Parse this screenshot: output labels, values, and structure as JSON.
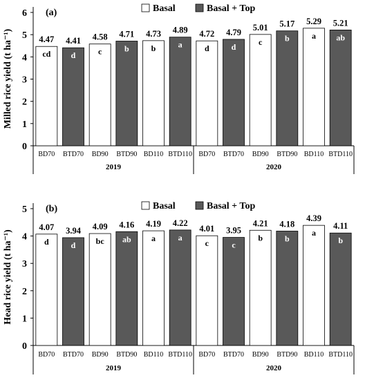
{
  "chart_data": [
    {
      "type": "bar",
      "panel_label": "(a)",
      "ylabel": "Milled rice yield (t ha⁻¹)",
      "ylim": [
        0,
        6
      ],
      "yticks": [
        "0",
        "1",
        "2",
        "3",
        "4",
        "5",
        "6"
      ],
      "categories": [
        "BD70",
        "BTD70",
        "BD90",
        "BTD90",
        "BD110",
        "BTD110",
        "BD70",
        "BTD70",
        "BD90",
        "BTD90",
        "BD110",
        "BTD110"
      ],
      "groups": [
        "2019",
        "2020"
      ],
      "legend": [
        "Basal",
        "Basal + Top"
      ],
      "legend_position": "top",
      "grid": false,
      "bar_colors": [
        "#ffffff",
        "#595959",
        "#ffffff",
        "#595959",
        "#ffffff",
        "#595959",
        "#ffffff",
        "#595959",
        "#ffffff",
        "#595959",
        "#ffffff",
        "#595959"
      ],
      "values": [
        4.47,
        4.41,
        4.58,
        4.71,
        4.73,
        4.89,
        4.72,
        4.79,
        5.01,
        5.17,
        5.29,
        5.21
      ],
      "value_labels": [
        "4.47",
        "4.41",
        "4.58",
        "4.71",
        "4.73",
        "4.89",
        "4.72",
        "4.79",
        "5.01",
        "5.17",
        "5.29",
        "5.21"
      ],
      "letters": [
        "cd",
        "d",
        "c",
        "b",
        "b",
        "a",
        "d",
        "d",
        "c",
        "b",
        "a",
        "ab"
      ]
    },
    {
      "type": "bar",
      "panel_label": "(b)",
      "ylabel": "Head rice yield (t ha⁻¹)",
      "ylim": [
        0,
        5
      ],
      "yticks": [
        "0",
        "1",
        "2",
        "3",
        "4",
        "5"
      ],
      "categories": [
        "BD70",
        "BTD70",
        "BD90",
        "BTD90",
        "BD110",
        "BTD110",
        "BD70",
        "BTD70",
        "BD90",
        "BTD90",
        "BD110",
        "BTD110"
      ],
      "groups": [
        "2019",
        "2020"
      ],
      "legend": [
        "Basal",
        "Basal + Top"
      ],
      "legend_position": "top",
      "grid": false,
      "bar_colors": [
        "#ffffff",
        "#595959",
        "#ffffff",
        "#595959",
        "#ffffff",
        "#595959",
        "#ffffff",
        "#595959",
        "#ffffff",
        "#595959",
        "#ffffff",
        "#595959"
      ],
      "values": [
        4.07,
        3.94,
        4.09,
        4.16,
        4.19,
        4.22,
        4.01,
        3.95,
        4.21,
        4.18,
        4.39,
        4.11
      ],
      "value_labels": [
        "4.07",
        "3.94",
        "4.09",
        "4.16",
        "4.19",
        "4.22",
        "4.01",
        "3.95",
        "4.21",
        "4.18",
        "4.39",
        "4.11"
      ],
      "letters": [
        "d",
        "d",
        "bc",
        "ab",
        "a",
        "a",
        "c",
        "c",
        "b",
        "b",
        "a",
        "b"
      ]
    }
  ]
}
